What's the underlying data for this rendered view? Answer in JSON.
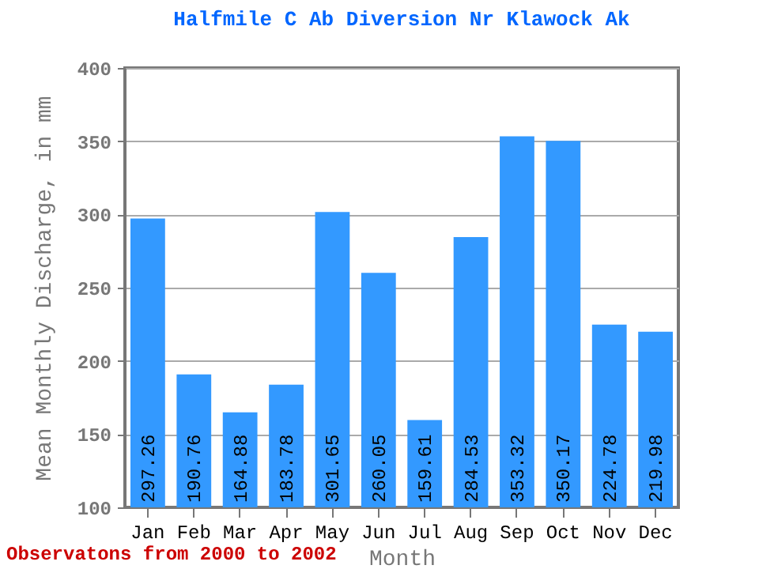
{
  "chart_data": {
    "type": "bar",
    "title": "Halfmile C Ab Diversion Nr Klawock Ak",
    "xlabel": "Month",
    "ylabel": "Mean Monthly Discharge, in mm",
    "categories": [
      "Jan",
      "Feb",
      "Mar",
      "Apr",
      "May",
      "Jun",
      "Jul",
      "Aug",
      "Sep",
      "Oct",
      "Nov",
      "Dec"
    ],
    "values": [
      297.26,
      190.76,
      164.88,
      183.78,
      301.65,
      260.05,
      159.61,
      284.53,
      353.32,
      350.17,
      224.78,
      219.98
    ],
    "color": "#3399ff",
    "ylim": [
      100,
      400
    ],
    "yticks": [
      100,
      150,
      200,
      250,
      300,
      350,
      400
    ],
    "grid": "y",
    "data_labels": true,
    "annotations": [
      "Observatons from 2000 to 2002"
    ]
  }
}
